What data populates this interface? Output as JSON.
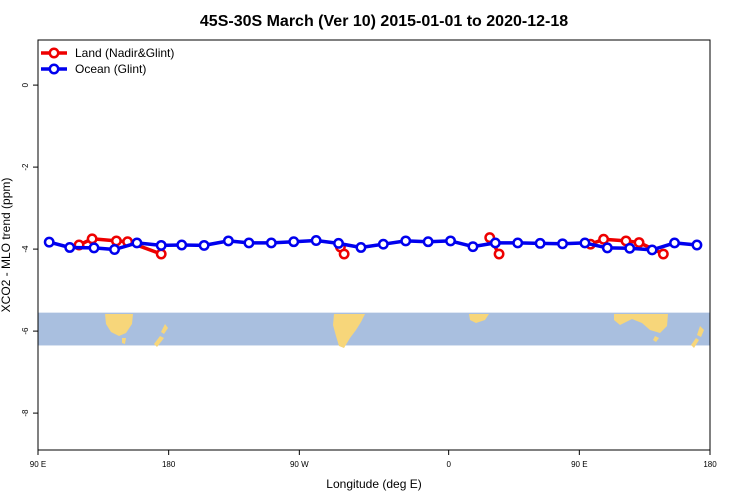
{
  "chart_data": {
    "type": "line",
    "title": "45S-30S March (Ver 10)   2015-01-01 to 2020-12-18",
    "xlabel": "Longitude (deg E)",
    "ylabel": "XCO2 - MLO trend (ppm)",
    "xlim": [
      90,
      450
    ],
    "ylim": [
      -8.9,
      1.1
    ],
    "x_ticks": [
      {
        "value": 90,
        "label": "90 E"
      },
      {
        "value": 160,
        "label": "180"
      },
      {
        "value": 230,
        "label": "90 W"
      },
      {
        "value": 310,
        "label": "0"
      },
      {
        "value": 380,
        "label": "90 E"
      },
      {
        "value": 450,
        "label": "180"
      }
    ],
    "y_ticks": [
      {
        "value": 0,
        "label": "0"
      },
      {
        "value": -2,
        "label": "-2"
      },
      {
        "value": -4,
        "label": "-4"
      },
      {
        "value": -6,
        "label": "-6"
      },
      {
        "value": -8,
        "label": "-8"
      }
    ],
    "grid": false,
    "legend_position": "top-left",
    "background_map_band": {
      "ymin": -6.35,
      "ymax": -5.55,
      "ocean_color": "#a9bfdf",
      "land_color": "#f7d67a"
    },
    "series": [
      {
        "name": "Land (Nadir&Glint)",
        "color": "#ee0000",
        "segments": [
          [
            [
              112,
              -3.9
            ],
            [
              119,
              -3.75
            ],
            [
              132,
              -3.8
            ],
            [
              138,
              -3.82
            ],
            [
              156,
              -4.12
            ]
          ],
          [
            [
              252,
              -3.95
            ],
            [
              254,
              -4.12
            ]
          ],
          [
            [
              332,
              -3.72
            ],
            [
              337,
              -4.12
            ]
          ],
          [
            [
              386,
              -3.88
            ],
            [
              393,
              -3.76
            ],
            [
              405,
              -3.8
            ],
            [
              412,
              -3.84
            ],
            [
              425,
              -4.12
            ]
          ]
        ]
      },
      {
        "name": "Ocean (Glint)",
        "color": "#0000ee",
        "segments": [
          [
            [
              96,
              -3.83
            ],
            [
              107,
              -3.96
            ],
            [
              120,
              -3.97
            ],
            [
              131,
              -4.01
            ],
            [
              143,
              -3.85
            ],
            [
              156,
              -3.91
            ],
            [
              167,
              -3.9
            ],
            [
              179,
              -3.91
            ],
            [
              192,
              -3.8
            ],
            [
              203,
              -3.85
            ],
            [
              215,
              -3.85
            ],
            [
              227,
              -3.82
            ],
            [
              239,
              -3.79
            ],
            [
              251,
              -3.86
            ],
            [
              263,
              -3.96
            ],
            [
              275,
              -3.88
            ],
            [
              287,
              -3.8
            ],
            [
              299,
              -3.82
            ],
            [
              311,
              -3.8
            ],
            [
              323,
              -3.94
            ],
            [
              335,
              -3.85
            ],
            [
              347,
              -3.85
            ],
            [
              359,
              -3.86
            ],
            [
              371,
              -3.87
            ],
            [
              383,
              -3.85
            ],
            [
              395,
              -3.97
            ],
            [
              407,
              -3.98
            ],
            [
              419,
              -4.02
            ],
            [
              431,
              -3.85
            ],
            [
              443,
              -3.9
            ]
          ]
        ]
      }
    ]
  }
}
